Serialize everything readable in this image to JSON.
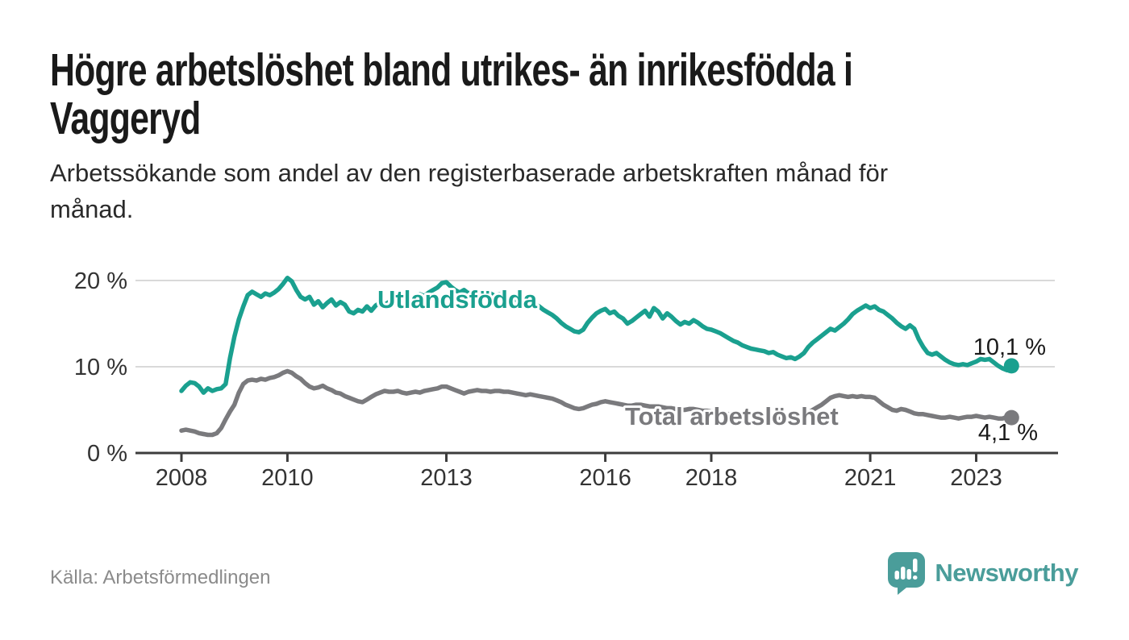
{
  "header": {
    "title": "Högre arbetslöshet bland utrikes- än inrikesfödda i Vaggeryd",
    "title_lines": [
      "Högre arbetslöshet bland utrikes- än inrikesfödda i",
      "Vaggeryd"
    ],
    "subtitle": "Arbetssökande som andel av den registerbaserade arbetskraften månad för månad.",
    "subtitle_lines": [
      "Arbetssökande som andel av den registerbaserade arbetskraften månad för",
      "månad."
    ]
  },
  "footer": {
    "source": "Källa: Arbetsförmedlingen",
    "brand_name": "Newsworthy"
  },
  "colors": {
    "accent_teal": "#1aa08f",
    "total_gray": "#7a7a7d",
    "grid": "#d9d9d9",
    "axis": "#3c3c3c",
    "axis_text": "#333333",
    "title_text": "#1a1a1a",
    "body_text": "#2a2a2a",
    "muted_text": "#8b8b8b",
    "logo_teal": "#4a9d9a"
  },
  "chart_data": {
    "type": "line",
    "unit": "%",
    "frequency": "monthly",
    "x_start": "2008-01",
    "x_end": "2023-09",
    "grid": true,
    "legend_position": "inline-labels",
    "ylim": [
      0,
      21.5
    ],
    "x_ticks": [
      2008,
      2010,
      2013,
      2016,
      2018,
      2021,
      2023
    ],
    "y_ticks": [
      {
        "value": 0,
        "label": "0 %"
      },
      {
        "value": 10,
        "label": "10 %"
      },
      {
        "value": 20,
        "label": "20 %"
      }
    ],
    "series": [
      {
        "id": "utlandsfodda",
        "name": "Utlandsfödda",
        "end_label": "10,1 %",
        "end_value": 10.1,
        "values": [
          7.2,
          7.8,
          8.2,
          8.1,
          7.7,
          7.0,
          7.5,
          7.2,
          7.4,
          7.5,
          8.0,
          11.0,
          13.5,
          15.5,
          17.0,
          18.3,
          18.7,
          18.4,
          18.1,
          18.5,
          18.3,
          18.6,
          19.0,
          19.6,
          20.3,
          19.9,
          18.9,
          18.1,
          17.8,
          18.1,
          17.2,
          17.6,
          16.9,
          17.4,
          17.8,
          17.1,
          17.5,
          17.2,
          16.4,
          16.2,
          16.6,
          16.4,
          17.0,
          16.5,
          17.1,
          17.4,
          17.2,
          17.5,
          17.7,
          17.4,
          17.8,
          18.0,
          17.7,
          18.1,
          18.4,
          18.2,
          18.6,
          18.9,
          19.2,
          19.7,
          19.8,
          19.3,
          18.9,
          18.6,
          18.9,
          18.5,
          18.7,
          18.4,
          18.6,
          18.3,
          18.5,
          18.2,
          18.4,
          18.2,
          18.0,
          17.9,
          17.7,
          17.8,
          17.6,
          17.4,
          17.2,
          17.0,
          16.6,
          16.3,
          16.0,
          15.6,
          15.1,
          14.7,
          14.4,
          14.1,
          14.0,
          14.3,
          15.1,
          15.7,
          16.2,
          16.5,
          16.7,
          16.2,
          16.4,
          15.9,
          15.6,
          15.0,
          15.3,
          15.7,
          16.1,
          16.5,
          15.8,
          16.8,
          16.4,
          15.6,
          16.2,
          15.8,
          15.3,
          14.9,
          15.2,
          15.0,
          15.4,
          15.1,
          14.7,
          14.4,
          14.3,
          14.1,
          13.9,
          13.6,
          13.3,
          13.0,
          12.8,
          12.5,
          12.3,
          12.1,
          12.0,
          11.9,
          11.8,
          11.6,
          11.7,
          11.4,
          11.2,
          11.0,
          11.1,
          10.9,
          11.2,
          11.6,
          12.3,
          12.8,
          13.2,
          13.6,
          14.0,
          14.4,
          14.2,
          14.6,
          15.0,
          15.5,
          16.1,
          16.5,
          16.8,
          17.1,
          16.8,
          17.0,
          16.6,
          16.4,
          16.0,
          15.6,
          15.1,
          14.7,
          14.4,
          14.8,
          14.4,
          13.2,
          12.3,
          11.6,
          11.4,
          11.6,
          11.2,
          10.8,
          10.5,
          10.3,
          10.2,
          10.3,
          10.2,
          10.4,
          10.6,
          10.9,
          10.8,
          10.9,
          10.5,
          10.1,
          9.8,
          9.6,
          10.1
        ]
      },
      {
        "id": "total-arbetsloshet",
        "name": "Total arbetslöshet",
        "end_label": "4,1 %",
        "end_value": 4.1,
        "values": [
          2.6,
          2.7,
          2.6,
          2.5,
          2.3,
          2.2,
          2.1,
          2.1,
          2.3,
          2.9,
          3.9,
          4.8,
          5.6,
          7.0,
          8.0,
          8.4,
          8.5,
          8.4,
          8.6,
          8.5,
          8.7,
          8.8,
          9.0,
          9.3,
          9.5,
          9.3,
          8.9,
          8.6,
          8.1,
          7.7,
          7.5,
          7.6,
          7.8,
          7.5,
          7.3,
          7.0,
          6.9,
          6.6,
          6.4,
          6.2,
          6.0,
          5.9,
          6.2,
          6.5,
          6.8,
          7.0,
          7.2,
          7.1,
          7.1,
          7.2,
          7.0,
          6.9,
          7.0,
          7.1,
          7.0,
          7.2,
          7.3,
          7.4,
          7.5,
          7.7,
          7.7,
          7.5,
          7.3,
          7.1,
          6.9,
          7.1,
          7.2,
          7.3,
          7.2,
          7.2,
          7.1,
          7.2,
          7.2,
          7.1,
          7.1,
          7.0,
          6.9,
          6.8,
          6.7,
          6.8,
          6.7,
          6.6,
          6.5,
          6.4,
          6.3,
          6.1,
          5.9,
          5.6,
          5.4,
          5.2,
          5.1,
          5.2,
          5.4,
          5.6,
          5.7,
          5.9,
          6.0,
          5.9,
          5.8,
          5.7,
          5.6,
          5.5,
          5.5,
          5.6,
          5.6,
          5.5,
          5.4,
          5.4,
          5.4,
          5.3,
          5.2,
          5.2,
          5.1,
          5.0,
          5.0,
          5.1,
          5.1,
          5.0,
          4.9,
          4.9,
          4.8,
          4.8,
          4.7,
          4.6,
          4.5,
          4.4,
          4.4,
          4.5,
          4.5,
          4.4,
          4.3,
          4.3,
          4.3,
          4.2,
          4.2,
          4.1,
          4.1,
          4.0,
          4.1,
          4.2,
          4.3,
          4.5,
          4.7,
          5.0,
          5.3,
          5.6,
          6.0,
          6.4,
          6.6,
          6.7,
          6.6,
          6.5,
          6.6,
          6.5,
          6.6,
          6.5,
          6.5,
          6.4,
          6.0,
          5.6,
          5.3,
          5.0,
          4.9,
          5.1,
          5.0,
          4.8,
          4.6,
          4.5,
          4.5,
          4.4,
          4.3,
          4.2,
          4.1,
          4.1,
          4.2,
          4.1,
          4.0,
          4.1,
          4.2,
          4.2,
          4.3,
          4.2,
          4.1,
          4.2,
          4.1,
          4.0,
          4.0,
          4.2,
          4.1
        ]
      }
    ]
  }
}
